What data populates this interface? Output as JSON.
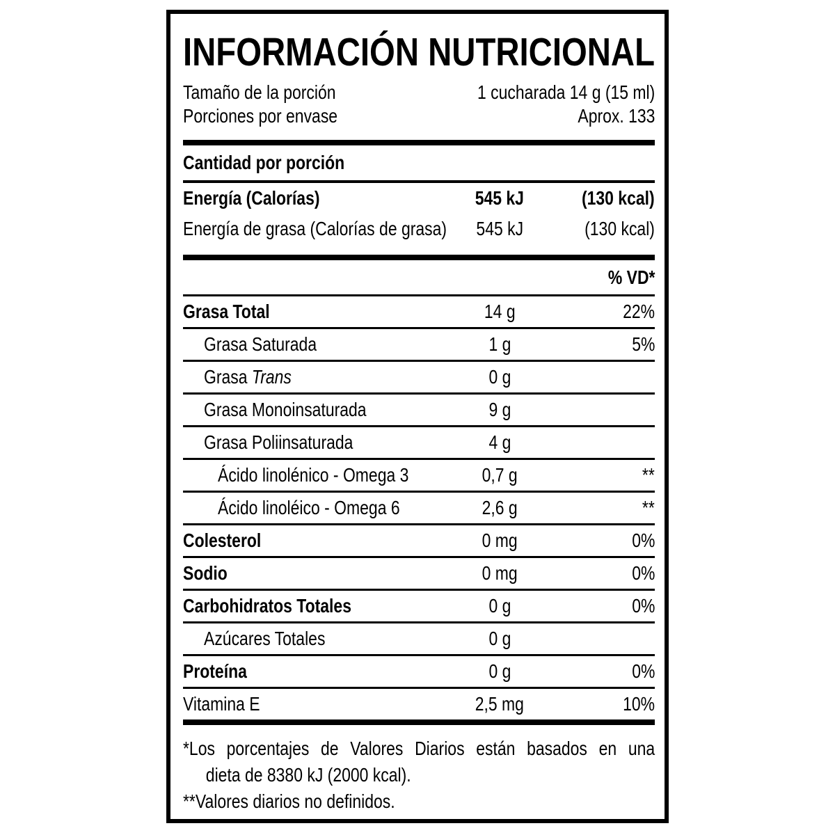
{
  "label": {
    "title": "INFORMACIÓN NUTRICIONAL",
    "serving": [
      {
        "label": "Tamaño de la porción",
        "value": "1 cucharada 14 g (15 ml)"
      },
      {
        "label": "Porciones por envase",
        "value": "Aprox. 133"
      }
    ],
    "amount_header": "Cantidad por porción",
    "energy_rows": [
      {
        "label": "Energía (Calorías)",
        "kj": "545 kJ",
        "kcal": "(130 kcal)"
      },
      {
        "label": "Energía de grasa (Calorías de grasa)",
        "kj": "545 kJ",
        "kcal": "(130 kcal)"
      }
    ],
    "dv_header": "% VD*",
    "rows": [
      {
        "label": "Grasa Total",
        "value": "14 g",
        "pct": "22%"
      },
      {
        "label": "Grasa Saturada",
        "value": "1 g",
        "pct": "5%"
      },
      {
        "label": "Grasa ",
        "label_italic": "Trans",
        "value": "0 g",
        "pct": ""
      },
      {
        "label": "Grasa Monoinsaturada",
        "value": "9 g",
        "pct": ""
      },
      {
        "label": "Grasa Poliinsaturada",
        "value": "4 g",
        "pct": ""
      },
      {
        "label": "Ácido linolénico - Omega 3",
        "value": "0,7 g",
        "pct": "**"
      },
      {
        "label": "Ácido linoléico - Omega 6",
        "value": "2,6 g",
        "pct": "**"
      },
      {
        "label": "Colesterol",
        "value": "0 mg",
        "pct": "0%"
      },
      {
        "label": "Sodio",
        "value": "0 mg",
        "pct": "0%"
      },
      {
        "label": "Carbohidratos Totales",
        "value": "0 g",
        "pct": "0%"
      },
      {
        "label": "Azúcares Totales",
        "value": "0 g",
        "pct": ""
      },
      {
        "label": "Proteína",
        "value": "0 g",
        "pct": "0%"
      },
      {
        "label": "Vitamina E",
        "value": "2,5 mg",
        "pct": "10%"
      }
    ],
    "footnotes": {
      "line1": "*Los porcentajes de Valores Diarios están basados en una",
      "line2": "dieta de 8380 kJ (2000 kcal).",
      "line3": "**Valores diarios no definidos."
    }
  }
}
